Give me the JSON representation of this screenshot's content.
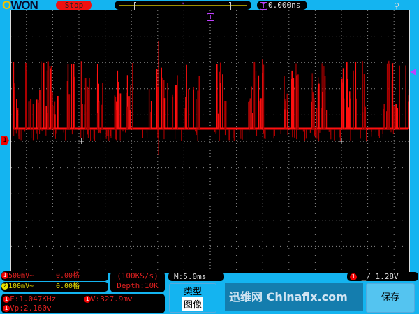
{
  "header": {
    "logo": "OWON",
    "run_state": "Stop",
    "trigger_time": "0.000ns",
    "trigger_marker": "T"
  },
  "channel1": {
    "label": "1",
    "scale": "500mV~",
    "offset": "0.00格",
    "color": "#ff1010"
  },
  "channel2": {
    "label": "2",
    "scale": "100mV~",
    "offset": "0.00格",
    "color": "#e8e000"
  },
  "acquisition": {
    "sample_rate": "(100KS/s)",
    "depth": "Depth:10K"
  },
  "timebase": "M:5.0ms",
  "measurements": [
    {
      "ch": "1",
      "text": "F:1.047KHz"
    },
    {
      "ch": "1",
      "text": "V:327.9mv"
    },
    {
      "ch": "1",
      "text": "Vp:2.160v"
    }
  ],
  "trigger": {
    "ch": "1",
    "edge": "rising",
    "level": "1.28V"
  },
  "menu": {
    "type_title": "类型",
    "type_value": "图像",
    "save_label": "保存"
  },
  "watermark": {
    "text": "迅维网 Chinafix.com"
  }
}
